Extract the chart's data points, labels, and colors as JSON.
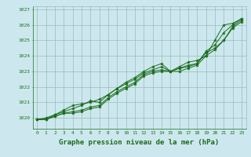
{
  "background_color": "#cce8ee",
  "grid_color": "#99bbbb",
  "line_color": "#1a6b1a",
  "xlabel": "Graphe pression niveau de la mer (hPa)",
  "xlabel_fontsize": 6.5,
  "xlim": [
    -0.5,
    23.5
  ],
  "ylim": [
    1019.3,
    1027.2
  ],
  "yticks": [
    1020,
    1021,
    1022,
    1023,
    1024,
    1025,
    1026,
    1027
  ],
  "xticks": [
    0,
    1,
    2,
    3,
    4,
    5,
    6,
    7,
    8,
    9,
    10,
    11,
    12,
    13,
    14,
    15,
    16,
    17,
    18,
    19,
    20,
    21,
    22,
    23
  ],
  "series": [
    [
      1019.9,
      1020.0,
      1020.2,
      1020.5,
      1020.8,
      1020.9,
      1021.0,
      1021.2,
      1021.5,
      1021.9,
      1022.3,
      1022.6,
      1023.0,
      1023.3,
      1023.5,
      1023.0,
      1023.3,
      1023.6,
      1023.7,
      1024.0,
      1025.0,
      1026.0,
      1026.1,
      1026.4
    ],
    [
      1019.9,
      1019.9,
      1020.2,
      1020.4,
      1020.6,
      1020.8,
      1021.1,
      1021.0,
      1021.5,
      1021.9,
      1022.2,
      1022.5,
      1022.9,
      1023.1,
      1023.3,
      1023.0,
      1023.2,
      1023.4,
      1023.5,
      1024.3,
      1024.7,
      1025.5,
      1026.0,
      1026.4
    ],
    [
      1019.9,
      1019.9,
      1020.1,
      1020.3,
      1020.4,
      1020.5,
      1020.7,
      1020.8,
      1021.3,
      1021.7,
      1022.0,
      1022.3,
      1022.8,
      1023.0,
      1023.1,
      1023.0,
      1023.2,
      1023.3,
      1023.5,
      1024.2,
      1024.5,
      1025.0,
      1025.9,
      1026.3
    ],
    [
      1019.9,
      1019.9,
      1020.1,
      1020.3,
      1020.3,
      1020.4,
      1020.6,
      1020.7,
      1021.2,
      1021.6,
      1021.9,
      1022.2,
      1022.7,
      1022.9,
      1023.0,
      1023.0,
      1023.0,
      1023.2,
      1023.4,
      1024.0,
      1024.4,
      1025.0,
      1025.8,
      1026.2
    ]
  ]
}
